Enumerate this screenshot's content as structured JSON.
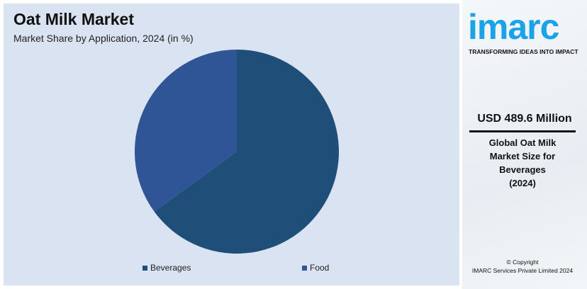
{
  "header": {
    "title": "Oat Milk Market",
    "subtitle": "Market Share by Application, 2024 (in %)"
  },
  "chart_data": {
    "type": "pie",
    "title": "Oat Milk Market",
    "subtitle": "Market Share by Application, 2024 (in %)",
    "categories": [
      "Beverages",
      "Food"
    ],
    "values": [
      65,
      35
    ],
    "colors": [
      "#1f4e79",
      "#2f5597"
    ],
    "legend": "bottom"
  },
  "side": {
    "logo": "imarc",
    "tagline": "TRANSFORMING IDEAS INTO IMPACT",
    "value": "USD 489.6 Million",
    "description": [
      "Global Oat Milk",
      "Market Size for",
      "Beverages",
      "(2024)"
    ],
    "copyright": [
      "© Copyright",
      "IMARC Services Private Limited 2024"
    ]
  }
}
